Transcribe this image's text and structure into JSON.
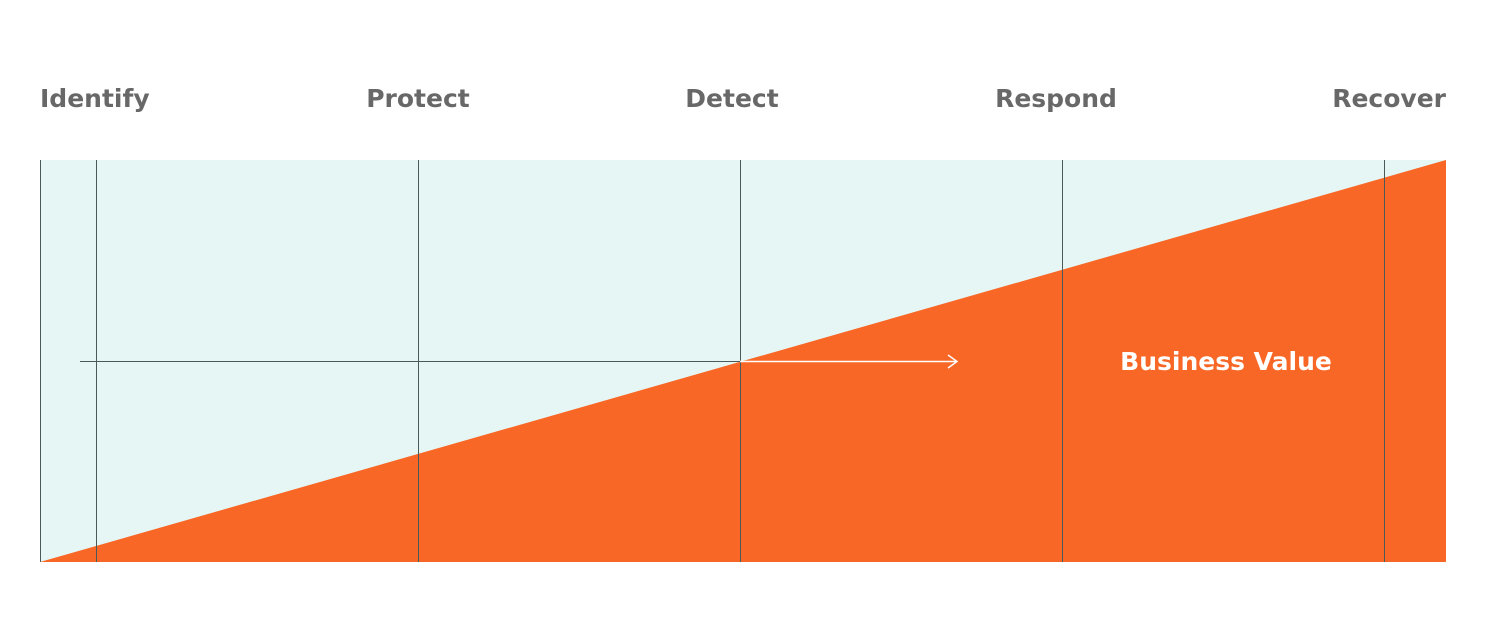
{
  "labels": [
    "Identify",
    "Protect",
    "Detect",
    "Respond",
    "Recover"
  ],
  "annotation": "Business Value"
}
